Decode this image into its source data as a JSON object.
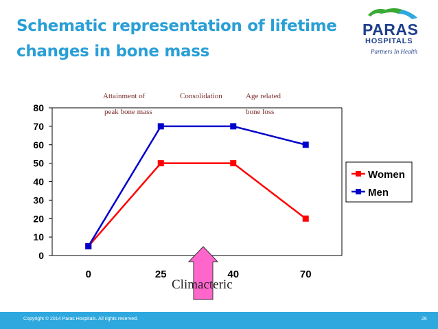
{
  "slide": {
    "title_line1": "Schematic representation of lifetime",
    "title_line2": "changes in bone mass",
    "copyright": "Copyright © 2014 Paras Hospitals. All rights reserved.",
    "page_number": "26"
  },
  "logo": {
    "name": "PARAS",
    "sub": "HOSPITALS",
    "tagline": "Partners In Health",
    "colors": {
      "primary": "#1e3f8a",
      "accent": "#3aaa35"
    }
  },
  "annotations": {
    "attainment_line1": "Attainment of",
    "attainment_line2": "peak bone mass",
    "consolidation": "Consolidation",
    "age_line1": "Age related",
    "age_line2": "bone  loss",
    "climacteric": "Climacteric"
  },
  "chart_data": {
    "type": "line",
    "title": "",
    "xlabel": "",
    "ylabel": "",
    "categories": [
      "0",
      "25",
      "40",
      "70"
    ],
    "ylim": [
      0,
      80
    ],
    "yticks": [
      "0",
      "10",
      "20",
      "30",
      "40",
      "50",
      "60",
      "70",
      "80"
    ],
    "grid": false,
    "legend_position": "right",
    "series": [
      {
        "name": "Women",
        "values": [
          5,
          50,
          50,
          20
        ],
        "color": "#ff0000"
      },
      {
        "name": "Men",
        "values": [
          5,
          70,
          70,
          60
        ],
        "color": "#0000cc"
      }
    ],
    "marker_note": "Climacteric",
    "marker_color": "#ff66cc"
  }
}
